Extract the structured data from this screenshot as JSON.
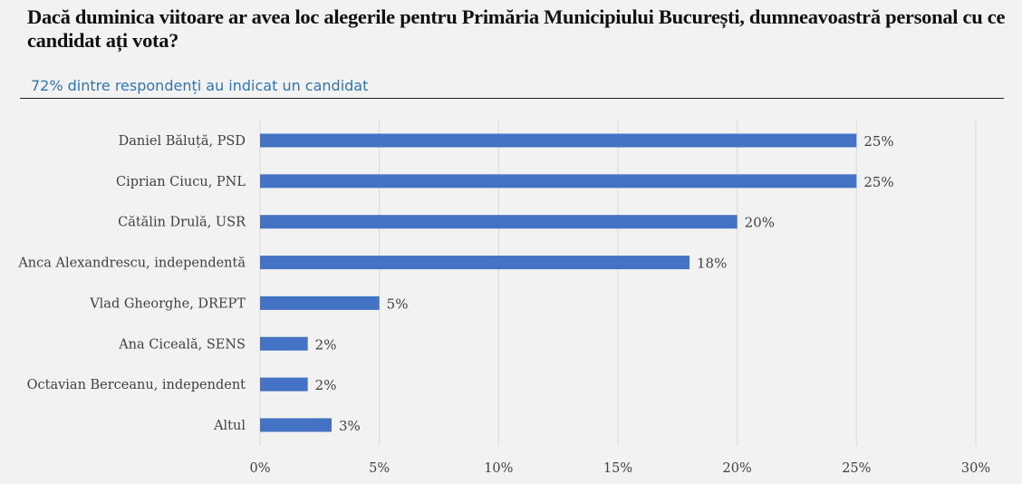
{
  "header": {
    "title": "Dacă duminica viitoare ar avea loc alegerile pentru Primăria Municipiului București, dumneavoastră personal cu ce candidat ați vota?",
    "subtitle": "72% dintre respondenți au indicat un candidat"
  },
  "colors": {
    "bar": "#4472c4",
    "grid": "#d9d9d9",
    "text": "#404040",
    "subtitle": "#2e75b6"
  },
  "chart_data": {
    "type": "bar",
    "orientation": "horizontal",
    "categories": [
      "Daniel Băluță, PSD",
      "Ciprian Ciucu, PNL",
      "Cătălin Drulă, USR",
      "Anca Alexandrescu, independentă",
      "Vlad Gheorghe, DREPT",
      "Ana Ciceală, SENS",
      "Octavian Berceanu, independent",
      "Altul"
    ],
    "values": [
      25,
      25,
      20,
      18,
      5,
      2,
      2,
      3
    ],
    "value_labels": [
      "25%",
      "25%",
      "20%",
      "18%",
      "5%",
      "2%",
      "2%",
      "3%"
    ],
    "xlim": [
      0,
      30
    ],
    "xticks": [
      0,
      5,
      10,
      15,
      20,
      25,
      30
    ],
    "xtick_labels": [
      "0%",
      "5%",
      "10%",
      "15%",
      "20%",
      "25%",
      "30%"
    ],
    "grid": true,
    "legend": "none"
  }
}
